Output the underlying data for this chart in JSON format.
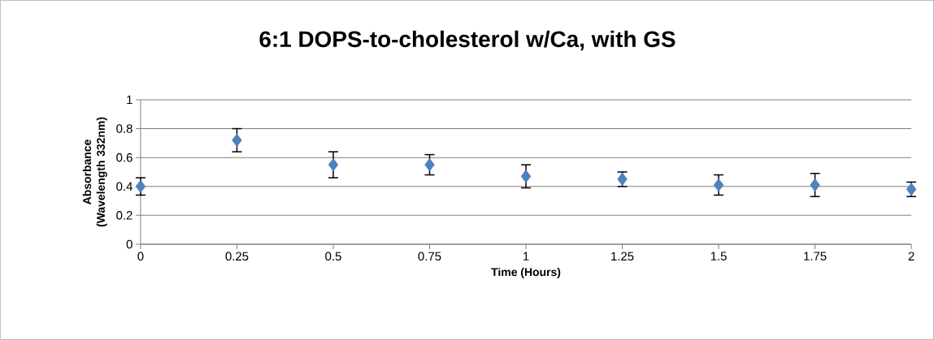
{
  "chart_data": {
    "type": "scatter",
    "title": "6:1 DOPS-to-cholesterol w/Ca, with GS",
    "xlabel": "Time (Hours)",
    "ylabel": "Absorbance (Wavelength 332nm)",
    "x": [
      0,
      0.25,
      0.5,
      0.75,
      1,
      1.25,
      1.5,
      1.75,
      2
    ],
    "values": [
      0.4,
      0.72,
      0.55,
      0.55,
      0.47,
      0.45,
      0.41,
      0.41,
      0.38
    ],
    "errors": [
      0.06,
      0.08,
      0.09,
      0.07,
      0.08,
      0.05,
      0.07,
      0.08,
      0.05
    ],
    "color": "#4f81bd",
    "marker": "diamond",
    "grid": "y",
    "xlim": [
      0,
      2
    ],
    "ylim": [
      0,
      1
    ],
    "xticks": [
      0,
      0.25,
      0.5,
      0.75,
      1,
      1.25,
      1.5,
      1.75,
      2
    ],
    "yticks": [
      0,
      0.2,
      0.4,
      0.6,
      0.8,
      1
    ]
  }
}
